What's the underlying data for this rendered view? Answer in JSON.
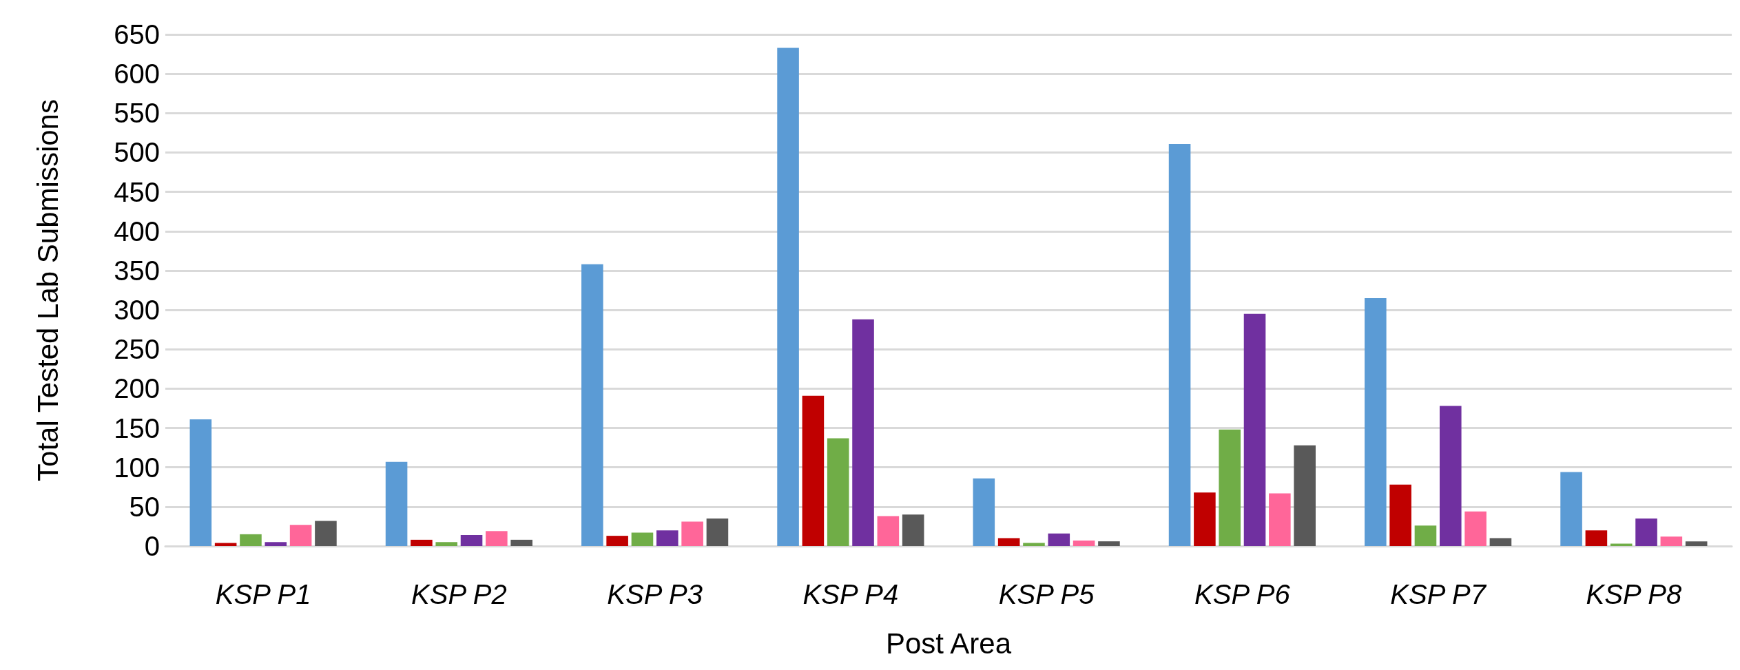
{
  "chart_data": {
    "type": "bar",
    "xlabel": "Post Area",
    "ylabel": "Total Tested Lab Submissions",
    "categories": [
      "KSP P1",
      "KSP P2",
      "KSP P3",
      "KSP P4",
      "KSP P5",
      "KSP P6",
      "KSP P7",
      "KSP P8"
    ],
    "series": [
      {
        "color": "#5b9bd5",
        "values": [
          161,
          107,
          358,
          633,
          86,
          511,
          315,
          94
        ]
      },
      {
        "color": "#c00000",
        "values": [
          4,
          8,
          13,
          191,
          10,
          68,
          78,
          20
        ]
      },
      {
        "color": "#70ad47",
        "values": [
          15,
          5,
          17,
          137,
          4,
          148,
          26,
          3
        ]
      },
      {
        "color": "#7030a0",
        "values": [
          5,
          14,
          20,
          288,
          16,
          295,
          178,
          35
        ]
      },
      {
        "color": "#ff6699",
        "values": [
          27,
          19,
          31,
          38,
          7,
          67,
          44,
          12
        ]
      },
      {
        "color": "#595959",
        "values": [
          32,
          8,
          35,
          40,
          6,
          128,
          10,
          6
        ]
      }
    ],
    "ylim": [
      0,
      650
    ],
    "yticks": [
      0,
      50,
      100,
      150,
      200,
      250,
      300,
      350,
      400,
      450,
      500,
      550,
      600,
      650
    ],
    "grid": "y"
  }
}
